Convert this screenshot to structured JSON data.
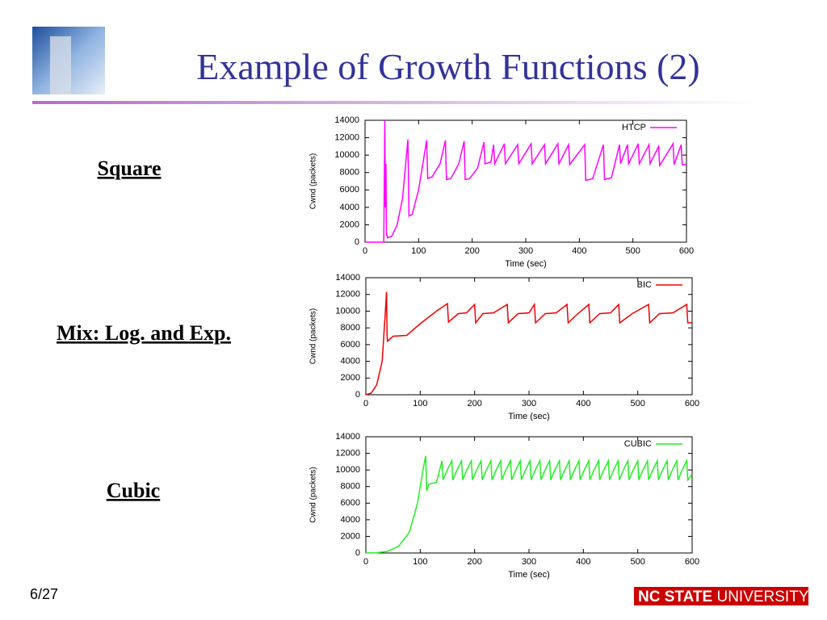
{
  "slide": {
    "title": "Example of Growth Functions (2)",
    "labels": [
      "Square",
      "Mix: Log. and Exp.",
      "Cubic"
    ],
    "page": "6/27",
    "logo": [
      "NC STATE",
      "UNIVERSITY"
    ]
  },
  "chart_data": [
    {
      "type": "line",
      "xlabel": "Time (sec)",
      "ylabel": "Cwnd (packets)",
      "legend": "top-right",
      "xlim": [
        0,
        600
      ],
      "ylim": [
        0,
        14000
      ],
      "xticks": [
        0,
        100,
        200,
        300,
        400,
        500,
        600
      ],
      "yticks": [
        0,
        2000,
        4000,
        6000,
        8000,
        10000,
        12000,
        14000
      ],
      "x": [
        0,
        35,
        37,
        38,
        39,
        40,
        42,
        50,
        60,
        70,
        80,
        82,
        88,
        100,
        115,
        117,
        125,
        140,
        150,
        152,
        160,
        175,
        185,
        187,
        195,
        210,
        222,
        224,
        235,
        240,
        242,
        260,
        262,
        285,
        287,
        310,
        312,
        335,
        337,
        360,
        362,
        380,
        382,
        410,
        412,
        425,
        445,
        447,
        460,
        475,
        477,
        490,
        492,
        510,
        512,
        530,
        532,
        548,
        550,
        575,
        577,
        590,
        592,
        600
      ],
      "series": [
        {
          "name": "HTCP",
          "color": "#ff00ff",
          "values": [
            0,
            0,
            14000,
            4000,
            9000,
            1000,
            500,
            700,
            2000,
            5000,
            11800,
            3000,
            3200,
            6000,
            11700,
            7300,
            7500,
            9000,
            11700,
            7200,
            7300,
            9000,
            11600,
            7200,
            7300,
            8500,
            11500,
            9000,
            9200,
            11200,
            9000,
            11300,
            9000,
            11200,
            9000,
            11300,
            9000,
            11200,
            9000,
            11300,
            9000,
            11200,
            8900,
            11200,
            7100,
            7300,
            11200,
            7200,
            7400,
            11200,
            9000,
            11200,
            9000,
            11300,
            9000,
            11200,
            9000,
            11000,
            8800,
            11300,
            8900,
            11200,
            8900,
            8900
          ]
        }
      ]
    },
    {
      "type": "line",
      "xlabel": "Time (sec)",
      "ylabel": "Cwnd (packets)",
      "legend": "top-right",
      "xlim": [
        0,
        600
      ],
      "ylim": [
        0,
        14000
      ],
      "xticks": [
        0,
        100,
        200,
        300,
        400,
        500,
        600
      ],
      "yticks": [
        0,
        2000,
        4000,
        6000,
        8000,
        10000,
        12000,
        14000
      ],
      "x": [
        0,
        10,
        20,
        30,
        36,
        38,
        39,
        40,
        50,
        75,
        100,
        130,
        150,
        152,
        170,
        185,
        200,
        202,
        215,
        235,
        260,
        262,
        280,
        300,
        310,
        312,
        330,
        350,
        370,
        372,
        390,
        410,
        412,
        430,
        450,
        465,
        467,
        490,
        520,
        522,
        540,
        565,
        590,
        592,
        600
      ],
      "series": [
        {
          "name": "BIC",
          "color": "#ee0000",
          "values": [
            0,
            200,
            1200,
            4000,
            10000,
            12300,
            7000,
            6400,
            7000,
            7100,
            8500,
            10000,
            10900,
            8700,
            9700,
            9800,
            10800,
            8600,
            9700,
            9800,
            10800,
            8600,
            9700,
            9800,
            10800,
            8600,
            9700,
            9800,
            10800,
            8600,
            9700,
            10800,
            8600,
            9700,
            9800,
            10800,
            8600,
            9700,
            10800,
            8600,
            9700,
            9800,
            10800,
            8600,
            8600
          ]
        }
      ]
    },
    {
      "type": "line",
      "xlabel": "Time (sec)",
      "ylabel": "Cwnd (packets)",
      "legend": "top-right",
      "xlim": [
        0,
        600
      ],
      "ylim": [
        0,
        14000
      ],
      "xticks": [
        0,
        100,
        200,
        300,
        400,
        500,
        600
      ],
      "yticks": [
        0,
        2000,
        4000,
        6000,
        8000,
        10000,
        12000,
        14000
      ],
      "x": [
        0,
        20,
        40,
        60,
        80,
        95,
        105,
        110,
        112,
        116,
        130,
        140,
        142,
        149,
        158,
        160,
        167,
        176,
        178,
        185,
        194,
        196,
        203,
        212,
        214,
        221,
        230,
        232,
        239,
        248,
        250,
        257,
        266,
        268,
        275,
        284,
        286,
        293,
        302,
        304,
        311,
        320,
        322,
        329,
        338,
        340,
        347,
        356,
        358,
        365,
        374,
        376,
        383,
        392,
        394,
        401,
        410,
        412,
        419,
        428,
        430,
        437,
        446,
        448,
        455,
        464,
        466,
        473,
        482,
        484,
        491,
        500,
        502,
        509,
        518,
        520,
        527,
        536,
        538,
        545,
        554,
        556,
        563,
        572,
        574,
        581,
        590,
        592,
        600
      ],
      "series": [
        {
          "name": "CUBIC",
          "color": "#22ee22",
          "values": [
            0,
            30,
            200,
            800,
            2500,
            6000,
            10000,
            11700,
            7500,
            8300,
            8500,
            11100,
            8800,
            9900,
            11100,
            8800,
            9900,
            11100,
            8800,
            9900,
            11100,
            8800,
            9900,
            11100,
            8800,
            9900,
            11100,
            8800,
            9900,
            11100,
            8800,
            9900,
            11100,
            8800,
            9900,
            11100,
            8800,
            9900,
            11100,
            8800,
            9900,
            11100,
            8800,
            9900,
            11100,
            8800,
            9900,
            11100,
            8800,
            9900,
            11100,
            8800,
            9900,
            11100,
            8800,
            9900,
            11100,
            8800,
            9900,
            11100,
            8800,
            9900,
            11100,
            8800,
            9900,
            11100,
            8800,
            9900,
            11100,
            8800,
            9900,
            11100,
            8800,
            9900,
            11100,
            8800,
            9900,
            11100,
            8800,
            9900,
            11100,
            8800,
            9900,
            11100,
            8800,
            9900,
            11100,
            8800,
            9500
          ]
        }
      ]
    }
  ]
}
